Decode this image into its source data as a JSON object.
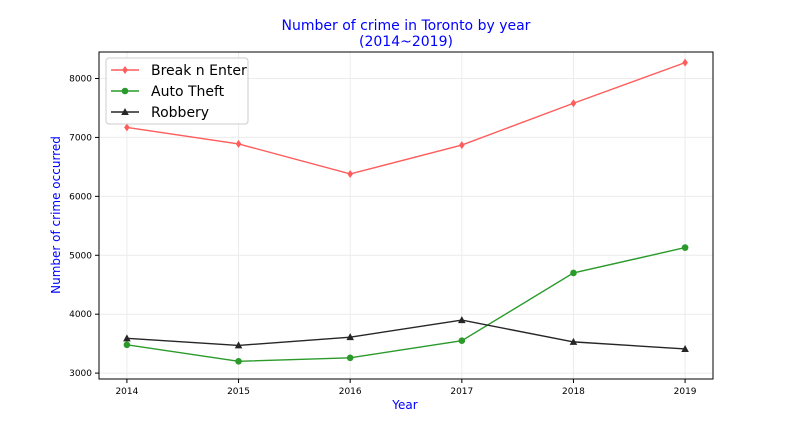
{
  "chart_data": {
    "type": "line",
    "title": "Number of crime in Toronto by year",
    "subtitle": "(2014~2019)",
    "xlabel": "Year",
    "ylabel": "Number of crime occurred",
    "x": [
      2014,
      2015,
      2016,
      2017,
      2018,
      2019
    ],
    "xticks": [
      "2014",
      "2015",
      "2016",
      "2017",
      "2018",
      "2019"
    ],
    "yticks": [
      "3000",
      "4000",
      "5000",
      "6000",
      "7000",
      "8000"
    ],
    "ylim": [
      2900,
      8450
    ],
    "xlim": [
      2013.75,
      2019.25
    ],
    "grid": true,
    "legend_position": "top-left",
    "series": [
      {
        "name": "Break n Enter",
        "color": "#ff5c5c",
        "marker": "diamond",
        "values": [
          7170,
          6890,
          6380,
          6870,
          7580,
          8270
        ]
      },
      {
        "name": "Auto Theft",
        "color": "#2a9a2a",
        "marker": "circle",
        "values": [
          3480,
          3200,
          3260,
          3550,
          4700,
          5130
        ]
      },
      {
        "name": "Robbery",
        "color": "#262626",
        "marker": "triangle",
        "values": [
          3590,
          3470,
          3610,
          3900,
          3530,
          3410
        ]
      }
    ]
  }
}
